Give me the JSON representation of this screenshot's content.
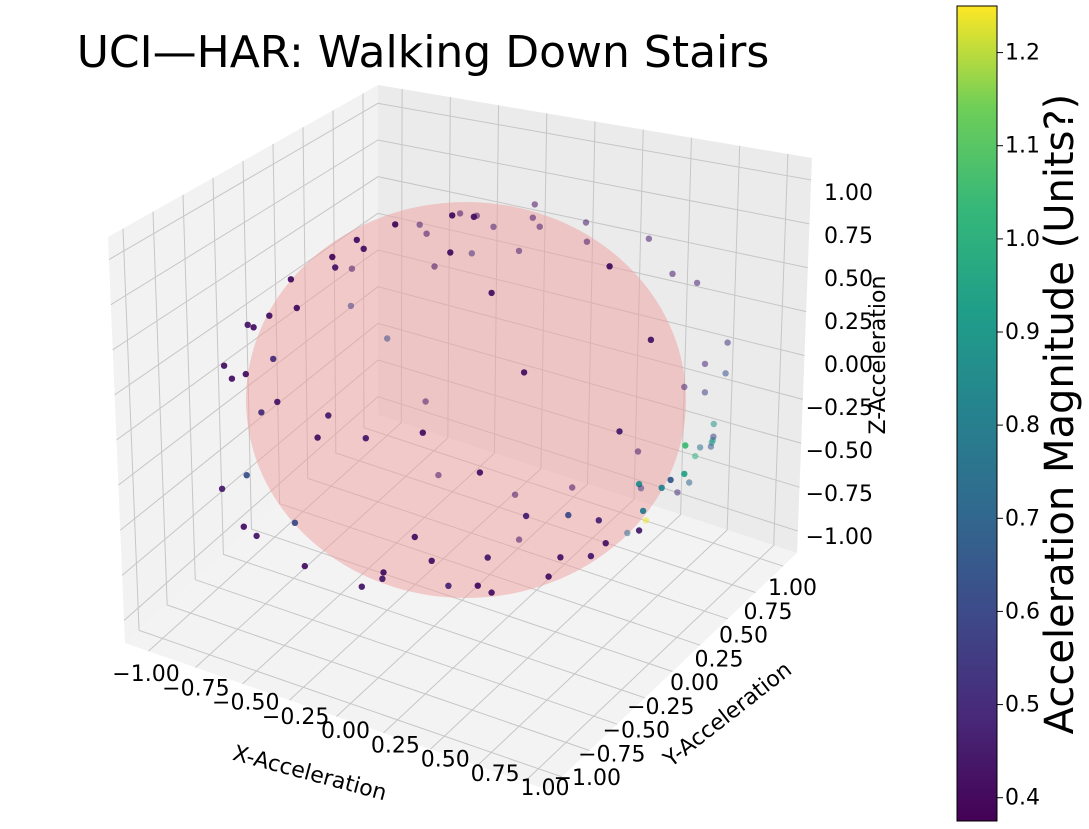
{
  "chart_data": {
    "type": "scatter",
    "projection": "3d",
    "title": "UCI—HAR: Walking Down Stairs",
    "xlabel": "X-Acceleration",
    "ylabel": "Y-Acceleration",
    "zlabel": "Z-Acceleration",
    "xlim": [
      -1.1,
      1.1
    ],
    "ylim": [
      -1.1,
      1.1
    ],
    "zlim": [
      -1.1,
      1.1
    ],
    "x_ticks": [
      "−1.00",
      "−0.75",
      "−0.50",
      "−0.25",
      "0.00",
      "0.25",
      "0.50",
      "0.75",
      "1.00"
    ],
    "y_ticks": [
      "−1.00",
      "−0.75",
      "−0.50",
      "−0.25",
      "0.00",
      "0.25",
      "0.50",
      "0.75",
      "1.00"
    ],
    "z_ticks": [
      "−1.00",
      "−0.75",
      "−0.50",
      "−0.25",
      "0.00",
      "0.25",
      "0.50",
      "0.75",
      "1.00"
    ],
    "grid": true,
    "colormap": "viridis",
    "colorbar": {
      "label": "Acceleration Magnitude (Units?)",
      "range": [
        0.375,
        1.25
      ],
      "ticks": [
        "0.4",
        "0.5",
        "0.6",
        "0.7",
        "0.8",
        "0.9",
        "1.0",
        "1.1",
        "1.2"
      ]
    },
    "surface": {
      "shape": "unit sphere",
      "color": "#f0a0a0"
    },
    "series": [
      {
        "marker_color": "viridis by magnitude",
        "points": [
          [
            -0.3,
            0.3,
            0.85,
            0.42
          ],
          [
            -0.45,
            0.1,
            0.85,
            0.4
          ],
          [
            -0.6,
            0.05,
            0.75,
            0.41
          ],
          [
            -0.35,
            0.45,
            0.75,
            0.43
          ],
          [
            -0.7,
            0.2,
            0.6,
            0.42
          ],
          [
            -0.55,
            0.35,
            0.7,
            0.45
          ],
          [
            -0.2,
            0.6,
            0.7,
            0.44
          ],
          [
            -0.8,
            -0.1,
            0.55,
            0.41
          ],
          [
            -0.5,
            -0.2,
            0.8,
            0.4
          ],
          [
            -0.65,
            0.5,
            0.55,
            0.42
          ],
          [
            -0.25,
            0.2,
            0.9,
            0.41
          ],
          [
            -0.4,
            0.6,
            0.6,
            0.46
          ],
          [
            -0.85,
            0.3,
            0.4,
            0.43
          ],
          [
            -0.9,
            -0.2,
            0.3,
            0.42
          ],
          [
            -0.75,
            -0.4,
            0.45,
            0.44
          ],
          [
            -0.95,
            0.1,
            0.25,
            0.41
          ],
          [
            -0.6,
            0.7,
            0.35,
            0.5
          ],
          [
            -0.3,
            0.75,
            0.55,
            0.44
          ],
          [
            -0.1,
            0.5,
            0.85,
            0.42
          ],
          [
            -0.15,
            0.85,
            0.45,
            0.43
          ],
          [
            -0.45,
            0.8,
            0.35,
            0.45
          ],
          [
            -0.7,
            0.6,
            0.3,
            0.41
          ],
          [
            -0.55,
            -0.5,
            0.6,
            0.42
          ],
          [
            -0.35,
            -0.35,
            0.85,
            0.43
          ],
          [
            -0.9,
            0.35,
            0.15,
            0.55
          ],
          [
            -0.98,
            0.0,
            0.0,
            0.5
          ],
          [
            -0.92,
            -0.3,
            0.05,
            0.42
          ],
          [
            -0.85,
            0.5,
            -0.1,
            0.6
          ],
          [
            -0.95,
            -0.1,
            -0.25,
            0.5
          ],
          [
            -0.88,
            0.2,
            -0.4,
            0.45
          ],
          [
            -0.8,
            -0.35,
            -0.45,
            0.62
          ],
          [
            -0.7,
            0.55,
            -0.45,
            0.44
          ],
          [
            -0.6,
            -0.3,
            -0.7,
            0.6
          ],
          [
            -0.5,
            0.4,
            -0.75,
            0.43
          ],
          [
            -0.35,
            0.1,
            -0.92,
            0.42
          ],
          [
            -0.2,
            -0.25,
            -0.95,
            0.44
          ],
          [
            0.0,
            0.3,
            -0.95,
            0.42
          ],
          [
            0.15,
            -0.1,
            -0.98,
            0.41
          ],
          [
            0.3,
            0.2,
            -0.93,
            0.43
          ],
          [
            0.4,
            -0.3,
            -0.86,
            0.42
          ],
          [
            0.5,
            0.15,
            -0.85,
            0.44
          ],
          [
            0.6,
            -0.2,
            -0.77,
            0.42
          ],
          [
            0.7,
            0.2,
            -0.68,
            0.45
          ],
          [
            0.8,
            -0.1,
            -0.58,
            0.43
          ],
          [
            0.85,
            0.25,
            -0.45,
            0.5
          ],
          [
            0.9,
            -0.25,
            -0.35,
            0.47
          ],
          [
            0.95,
            0.1,
            -0.28,
            0.65
          ],
          [
            0.92,
            0.3,
            -0.2,
            0.75
          ],
          [
            0.88,
            -0.4,
            -0.25,
            0.6
          ],
          [
            0.97,
            -0.1,
            -0.2,
            0.85
          ],
          [
            0.85,
            0.45,
            -0.25,
            0.92
          ],
          [
            0.8,
            0.5,
            -0.3,
            0.88
          ],
          [
            0.93,
            0.2,
            -0.3,
            0.95
          ],
          [
            0.9,
            0.0,
            -0.42,
            0.78
          ],
          [
            0.82,
            0.35,
            -0.45,
            0.7
          ],
          [
            0.75,
            0.55,
            -0.36,
            0.65
          ],
          [
            0.7,
            0.62,
            -0.35,
            0.58
          ],
          [
            0.96,
            -0.2,
            0.15,
            0.45
          ],
          [
            0.9,
            0.35,
            0.25,
            0.48
          ],
          [
            0.85,
            0.1,
            0.5,
            0.43
          ],
          [
            0.7,
            -0.45,
            0.55,
            0.42
          ],
          [
            0.6,
            0.5,
            0.62,
            0.44
          ],
          [
            0.55,
            0.2,
            0.8,
            0.41
          ],
          [
            0.4,
            -0.3,
            0.86,
            0.42
          ],
          [
            0.25,
            0.4,
            0.88,
            0.43
          ],
          [
            0.1,
            -0.2,
            0.97,
            0.41
          ],
          [
            -0.05,
            0.1,
            0.99,
            0.42
          ],
          [
            0.3,
            0.7,
            0.65,
            0.45
          ],
          [
            0.5,
            0.75,
            0.42,
            0.47
          ],
          [
            0.7,
            0.7,
            0.15,
            0.52
          ],
          [
            0.6,
            0.8,
            -0.1,
            0.62
          ],
          [
            0.45,
            0.85,
            -0.27,
            0.57
          ],
          [
            0.3,
            0.9,
            -0.3,
            0.48
          ],
          [
            0.2,
            0.75,
            -0.62,
            0.44
          ],
          [
            0.0,
            0.6,
            -0.8,
            0.42
          ],
          [
            -0.2,
            0.5,
            -0.84,
            0.43
          ],
          [
            0.65,
            -0.6,
            -0.45,
            0.44
          ],
          [
            0.5,
            -0.75,
            -0.43,
            0.42
          ],
          [
            0.3,
            -0.8,
            -0.52,
            0.41
          ],
          [
            0.1,
            -0.7,
            -0.7,
            0.43
          ],
          [
            -0.1,
            -0.8,
            -0.58,
            0.42
          ],
          [
            -0.3,
            -0.85,
            -0.43,
            0.44
          ],
          [
            -0.5,
            -0.7,
            -0.5,
            0.42
          ],
          [
            -0.7,
            -0.6,
            -0.38,
            0.45
          ],
          [
            0.8,
            -0.55,
            -0.2,
            0.46
          ],
          [
            0.7,
            -0.7,
            0.1,
            0.43
          ],
          [
            0.5,
            -0.8,
            0.33,
            0.42
          ],
          [
            0.3,
            -0.9,
            0.3,
            0.44
          ],
          [
            0.1,
            -0.95,
            0.28,
            0.42
          ],
          [
            -0.15,
            -0.9,
            0.4,
            0.43
          ],
          [
            -0.4,
            -0.8,
            0.45,
            0.41
          ],
          [
            -0.6,
            -0.7,
            0.4,
            0.42
          ],
          [
            0.98,
            0.15,
            -0.1,
            1.05
          ],
          [
            0.94,
            0.25,
            -0.22,
            1.0
          ],
          [
            0.9,
            0.4,
            -0.12,
            0.9
          ],
          [
            0.95,
            0.05,
            -0.3,
            0.82
          ],
          [
            0.6,
            0.35,
            -0.72,
            1.24
          ],
          [
            0.35,
            0.6,
            -0.72,
            0.55
          ],
          [
            0.45,
            -0.6,
            -0.66,
            0.48
          ],
          [
            0.55,
            0.3,
            -0.78,
            0.72
          ]
        ]
      }
    ]
  }
}
